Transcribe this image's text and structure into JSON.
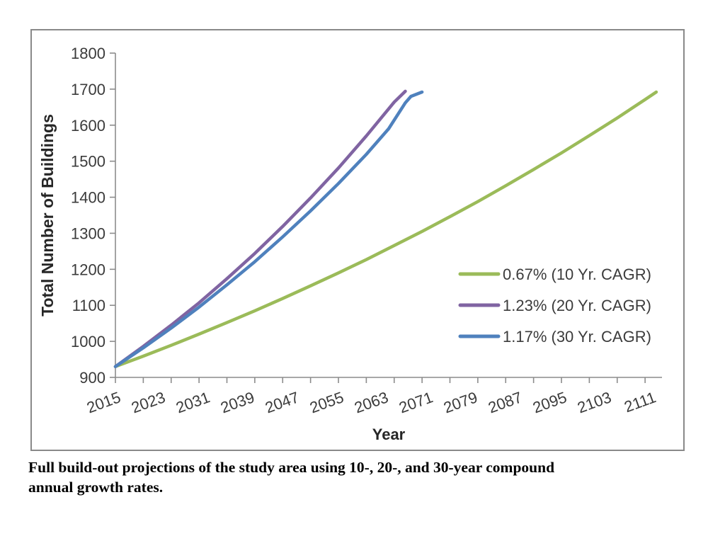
{
  "page": {
    "background": "#ffffff"
  },
  "caption": {
    "lines": [
      "Full build-out projections of the study area using 10-, 20-, and 30-year compound",
      "annual growth rates."
    ],
    "full_text": "Full build-out projections of the study area using 10-, 20-, and 30-year compound annual growth rates."
  },
  "chart_data": {
    "type": "line",
    "title": "",
    "xlabel": "Year",
    "ylabel": "Total Number of Buildings",
    "grid": "off",
    "legend_position": "inside-right",
    "x_axis": {
      "min": 2015,
      "max": 2113,
      "tick_label_years": [
        2015,
        2023,
        2031,
        2039,
        2047,
        2055,
        2063,
        2071,
        2079,
        2087,
        2095,
        2103,
        2111
      ],
      "minor_tick_step_years": 5
    },
    "y_axis": {
      "min": 900,
      "max": 1800,
      "tick_step": 100,
      "tick_values": [
        900,
        1000,
        1100,
        1200,
        1300,
        1400,
        1500,
        1600,
        1700,
        1800
      ]
    },
    "series": [
      {
        "id": "cagr-10yr",
        "label": "0.67% (10 Yr. CAGR)",
        "color": "#9BBB59",
        "points": [
          [
            2015,
            930
          ],
          [
            2020,
            959
          ],
          [
            2025,
            989
          ],
          [
            2030,
            1020
          ],
          [
            2035,
            1052
          ],
          [
            2040,
            1085
          ],
          [
            2045,
            1119
          ],
          [
            2050,
            1154
          ],
          [
            2055,
            1190
          ],
          [
            2060,
            1227
          ],
          [
            2065,
            1266
          ],
          [
            2070,
            1305
          ],
          [
            2075,
            1346
          ],
          [
            2080,
            1388
          ],
          [
            2085,
            1432
          ],
          [
            2090,
            1477
          ],
          [
            2095,
            1523
          ],
          [
            2100,
            1571
          ],
          [
            2105,
            1620
          ],
          [
            2110,
            1671
          ],
          [
            2112,
            1692
          ]
        ]
      },
      {
        "id": "cagr-20yr",
        "label": "1.23% (20 Yr. CAGR)",
        "color": "#8064A2",
        "points": [
          [
            2015,
            930
          ],
          [
            2020,
            986
          ],
          [
            2025,
            1045
          ],
          [
            2030,
            1107
          ],
          [
            2035,
            1174
          ],
          [
            2040,
            1244
          ],
          [
            2045,
            1319
          ],
          [
            2050,
            1398
          ],
          [
            2055,
            1481
          ],
          [
            2060,
            1570
          ],
          [
            2065,
            1664
          ],
          [
            2067,
            1694
          ]
        ]
      },
      {
        "id": "cagr-30yr",
        "label": "1.17% (30 Yr. CAGR)",
        "color": "#4F81BD",
        "points": [
          [
            2015,
            930
          ],
          [
            2020,
            982
          ],
          [
            2025,
            1037
          ],
          [
            2030,
            1095
          ],
          [
            2035,
            1157
          ],
          [
            2040,
            1221
          ],
          [
            2045,
            1290
          ],
          [
            2050,
            1362
          ],
          [
            2055,
            1438
          ],
          [
            2060,
            1519
          ],
          [
            2064,
            1590
          ],
          [
            2067,
            1662
          ],
          [
            2068,
            1680
          ],
          [
            2070,
            1692
          ]
        ]
      }
    ],
    "colors": {
      "axis": "#8C8C8C",
      "tick_label": "#3B3B3B",
      "legend_text": "#3B3B3B",
      "axis_title": "#262626",
      "frame_border": "#898989"
    }
  }
}
